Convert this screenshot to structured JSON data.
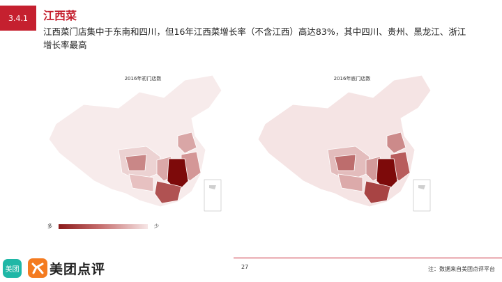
{
  "section": {
    "number": "3.4.1",
    "title": "江西菜"
  },
  "subtitle": "江西菜门店集中于东南和四川，但16年江西菜增长率（不含江西）高达83%，其中四川、贵州、黑龙江、浙江增长率最高",
  "maps": [
    {
      "title": "2016年初门店数"
    },
    {
      "title": "2016年底门店数"
    }
  ],
  "legend": {
    "high_label": "多",
    "low_label": "少",
    "colors": [
      "#8b1a1a",
      "#f6e6e6"
    ]
  },
  "footer": {
    "page_number": "27",
    "note": "注：数据来自美团点评平台",
    "brand_badge": "美团",
    "brand_name": "美团点评"
  },
  "colors": {
    "accent": "#c5202f",
    "brand_teal": "#1fb7a6",
    "brand_orange": "#f47b20"
  }
}
